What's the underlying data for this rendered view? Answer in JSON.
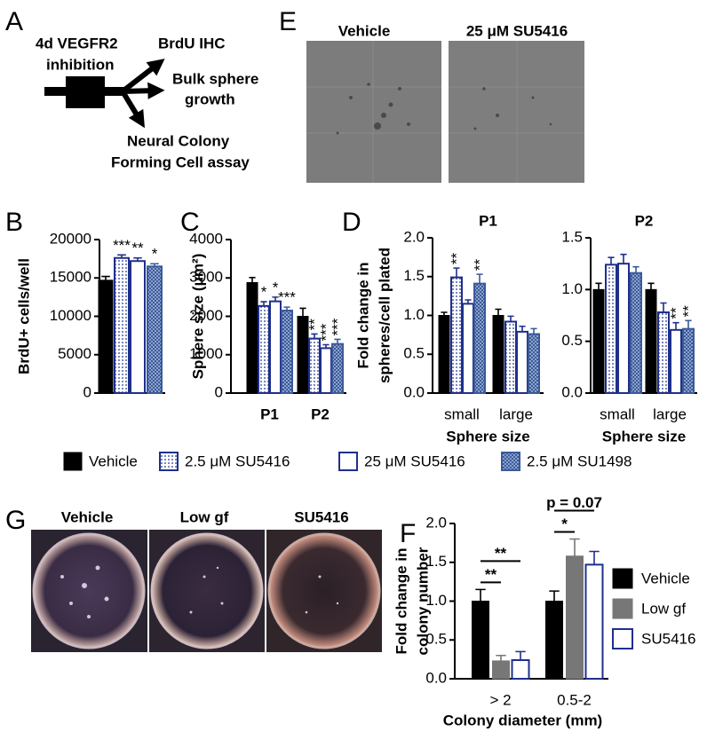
{
  "panel_a": {
    "letter": "A",
    "labels": [
      "4d VEGFR2",
      "inhibition",
      "BrdU IHC",
      "Bulk sphere",
      "growth",
      "Neural Colony",
      "Forming Cell  assay"
    ]
  },
  "panel_e": {
    "letter": "E",
    "image_labels": [
      "Vehicle",
      "25 μM SU5416"
    ]
  },
  "legend": [
    {
      "name": "Vehicle",
      "color": "#000000",
      "fill": "solid"
    },
    {
      "name": "2.5 μM SU5416",
      "color": "#1f2f8c",
      "fill": "dots"
    },
    {
      "name": "25 μM SU5416",
      "color": "#1f2f8c",
      "fill": "hollow"
    },
    {
      "name": "2.5 μM SU1498",
      "color": "#3b5a9a",
      "fill": "checker"
    }
  ],
  "chart_data": [
    {
      "type": "bar",
      "letter": "B",
      "ylabel": "BrdU+ cells/well",
      "categories": [
        null
      ],
      "ylim": [
        0,
        20000
      ],
      "yticks": [
        0,
        5000,
        10000,
        15000,
        20000
      ],
      "series": [
        {
          "values": [
            14700
          ],
          "errors": [
            500
          ],
          "significance": [
            null
          ]
        },
        {
          "values": [
            17600
          ],
          "errors": [
            400
          ],
          "significance": [
            "***"
          ]
        },
        {
          "values": [
            17200
          ],
          "errors": [
            400
          ],
          "significance": [
            "**"
          ]
        },
        {
          "values": [
            16500
          ],
          "errors": [
            350
          ],
          "significance": [
            "*"
          ]
        }
      ]
    },
    {
      "type": "bar",
      "letter": "C",
      "ylabel": "Sphere size (μm²)",
      "categories": [
        "P1",
        "P2"
      ],
      "ylim": [
        0,
        4000
      ],
      "yticks": [
        0,
        1000,
        2000,
        3000,
        4000
      ],
      "series": [
        {
          "values": [
            2880,
            2000
          ],
          "errors": [
            130,
            210
          ],
          "significance": [
            null,
            null
          ]
        },
        {
          "values": [
            2270,
            1420
          ],
          "errors": [
            110,
            120
          ],
          "significance": [
            "*",
            "**"
          ]
        },
        {
          "values": [
            2390,
            1170
          ],
          "errors": [
            110,
            90
          ],
          "significance": [
            "*",
            "***"
          ]
        },
        {
          "values": [
            2150,
            1280
          ],
          "errors": [
            90,
            120
          ],
          "significance": [
            "***",
            "***"
          ]
        }
      ]
    },
    {
      "type": "bar",
      "letter": "D",
      "title": "P1",
      "ylabel": [
        "Fold change in",
        "spheres/cell plated"
      ],
      "xlabel": "Sphere size",
      "categories": [
        "small",
        "large"
      ],
      "ylim": [
        0,
        2
      ],
      "yticks": [
        {
          "value": 0,
          "label": "0.0"
        },
        0.5,
        {
          "value": 1,
          "label": "1.0"
        },
        1.5,
        {
          "value": 2,
          "label": "2.0"
        }
      ],
      "series": [
        {
          "values": [
            1.0,
            1.0
          ],
          "errors": [
            0.04,
            0.08
          ],
          "significance": [
            null,
            null
          ]
        },
        {
          "values": [
            1.49,
            0.92
          ],
          "errors": [
            0.12,
            0.07
          ],
          "significance": [
            "**",
            null
          ]
        },
        {
          "values": [
            1.15,
            0.79
          ],
          "errors": [
            0.05,
            0.07
          ],
          "significance": [
            null,
            null
          ]
        },
        {
          "values": [
            1.41,
            0.76
          ],
          "errors": [
            0.12,
            0.07
          ],
          "significance": [
            "**",
            null
          ]
        }
      ]
    },
    {
      "type": "bar",
      "title": "P2",
      "xlabel": "Sphere size",
      "categories": [
        "small",
        "large"
      ],
      "ylim": [
        0,
        1.5
      ],
      "yticks": [
        {
          "value": 0,
          "label": "0.0"
        },
        0.5,
        {
          "value": 1,
          "label": "1.0"
        },
        1.5
      ],
      "series": [
        {
          "values": [
            1.0,
            1.0
          ],
          "errors": [
            0.06,
            0.06
          ],
          "significance": [
            null,
            null
          ]
        },
        {
          "values": [
            1.24,
            0.78
          ],
          "errors": [
            0.07,
            0.09
          ],
          "significance": [
            null,
            null
          ]
        },
        {
          "values": [
            1.25,
            0.61
          ],
          "errors": [
            0.09,
            0.07
          ],
          "significance": [
            null,
            "**"
          ]
        },
        {
          "values": [
            1.16,
            0.62
          ],
          "errors": [
            0.06,
            0.08
          ],
          "significance": [
            null,
            "**"
          ]
        }
      ]
    },
    {
      "type": "bar",
      "letter": "F",
      "ylabel": [
        "Fold change in",
        "colony number"
      ],
      "xlabel": "Colony diameter (mm)",
      "categories": [
        "> 2",
        "0.5-2"
      ],
      "ylim": [
        0,
        2
      ],
      "yticks": [
        {
          "value": 0,
          "label": "0.0"
        },
        0.5,
        {
          "value": 1,
          "label": "1.0"
        },
        1.5,
        {
          "value": 2,
          "label": "2.0"
        }
      ],
      "series": [
        {
          "name": "Vehicle",
          "color": "#000000",
          "fill": "solid",
          "values": [
            1.0,
            1.0
          ],
          "errors": [
            0.15,
            0.13
          ]
        },
        {
          "name": "Low gf",
          "color": "#777777",
          "fill": "solid",
          "values": [
            0.23,
            1.58
          ],
          "errors": [
            0.07,
            0.22
          ]
        },
        {
          "name": "SU5416",
          "color": "#1f2f8c",
          "fill": "hollow",
          "values": [
            0.24,
            1.47
          ],
          "errors": [
            0.11,
            0.17
          ]
        }
      ],
      "annotations": [
        {
          "text": "**",
          "category": 0,
          "series": [
            0,
            1
          ]
        },
        {
          "text": "**",
          "category": 0,
          "series": [
            0,
            2
          ]
        },
        {
          "text": "*",
          "category": 1,
          "series": [
            0,
            1
          ]
        },
        {
          "text": "p = 0.07",
          "category": 1,
          "series": [
            0,
            2
          ]
        }
      ]
    }
  ],
  "panel_g": {
    "letter": "G",
    "image_labels": [
      "Vehicle",
      "Low gf",
      "SU5416"
    ]
  }
}
